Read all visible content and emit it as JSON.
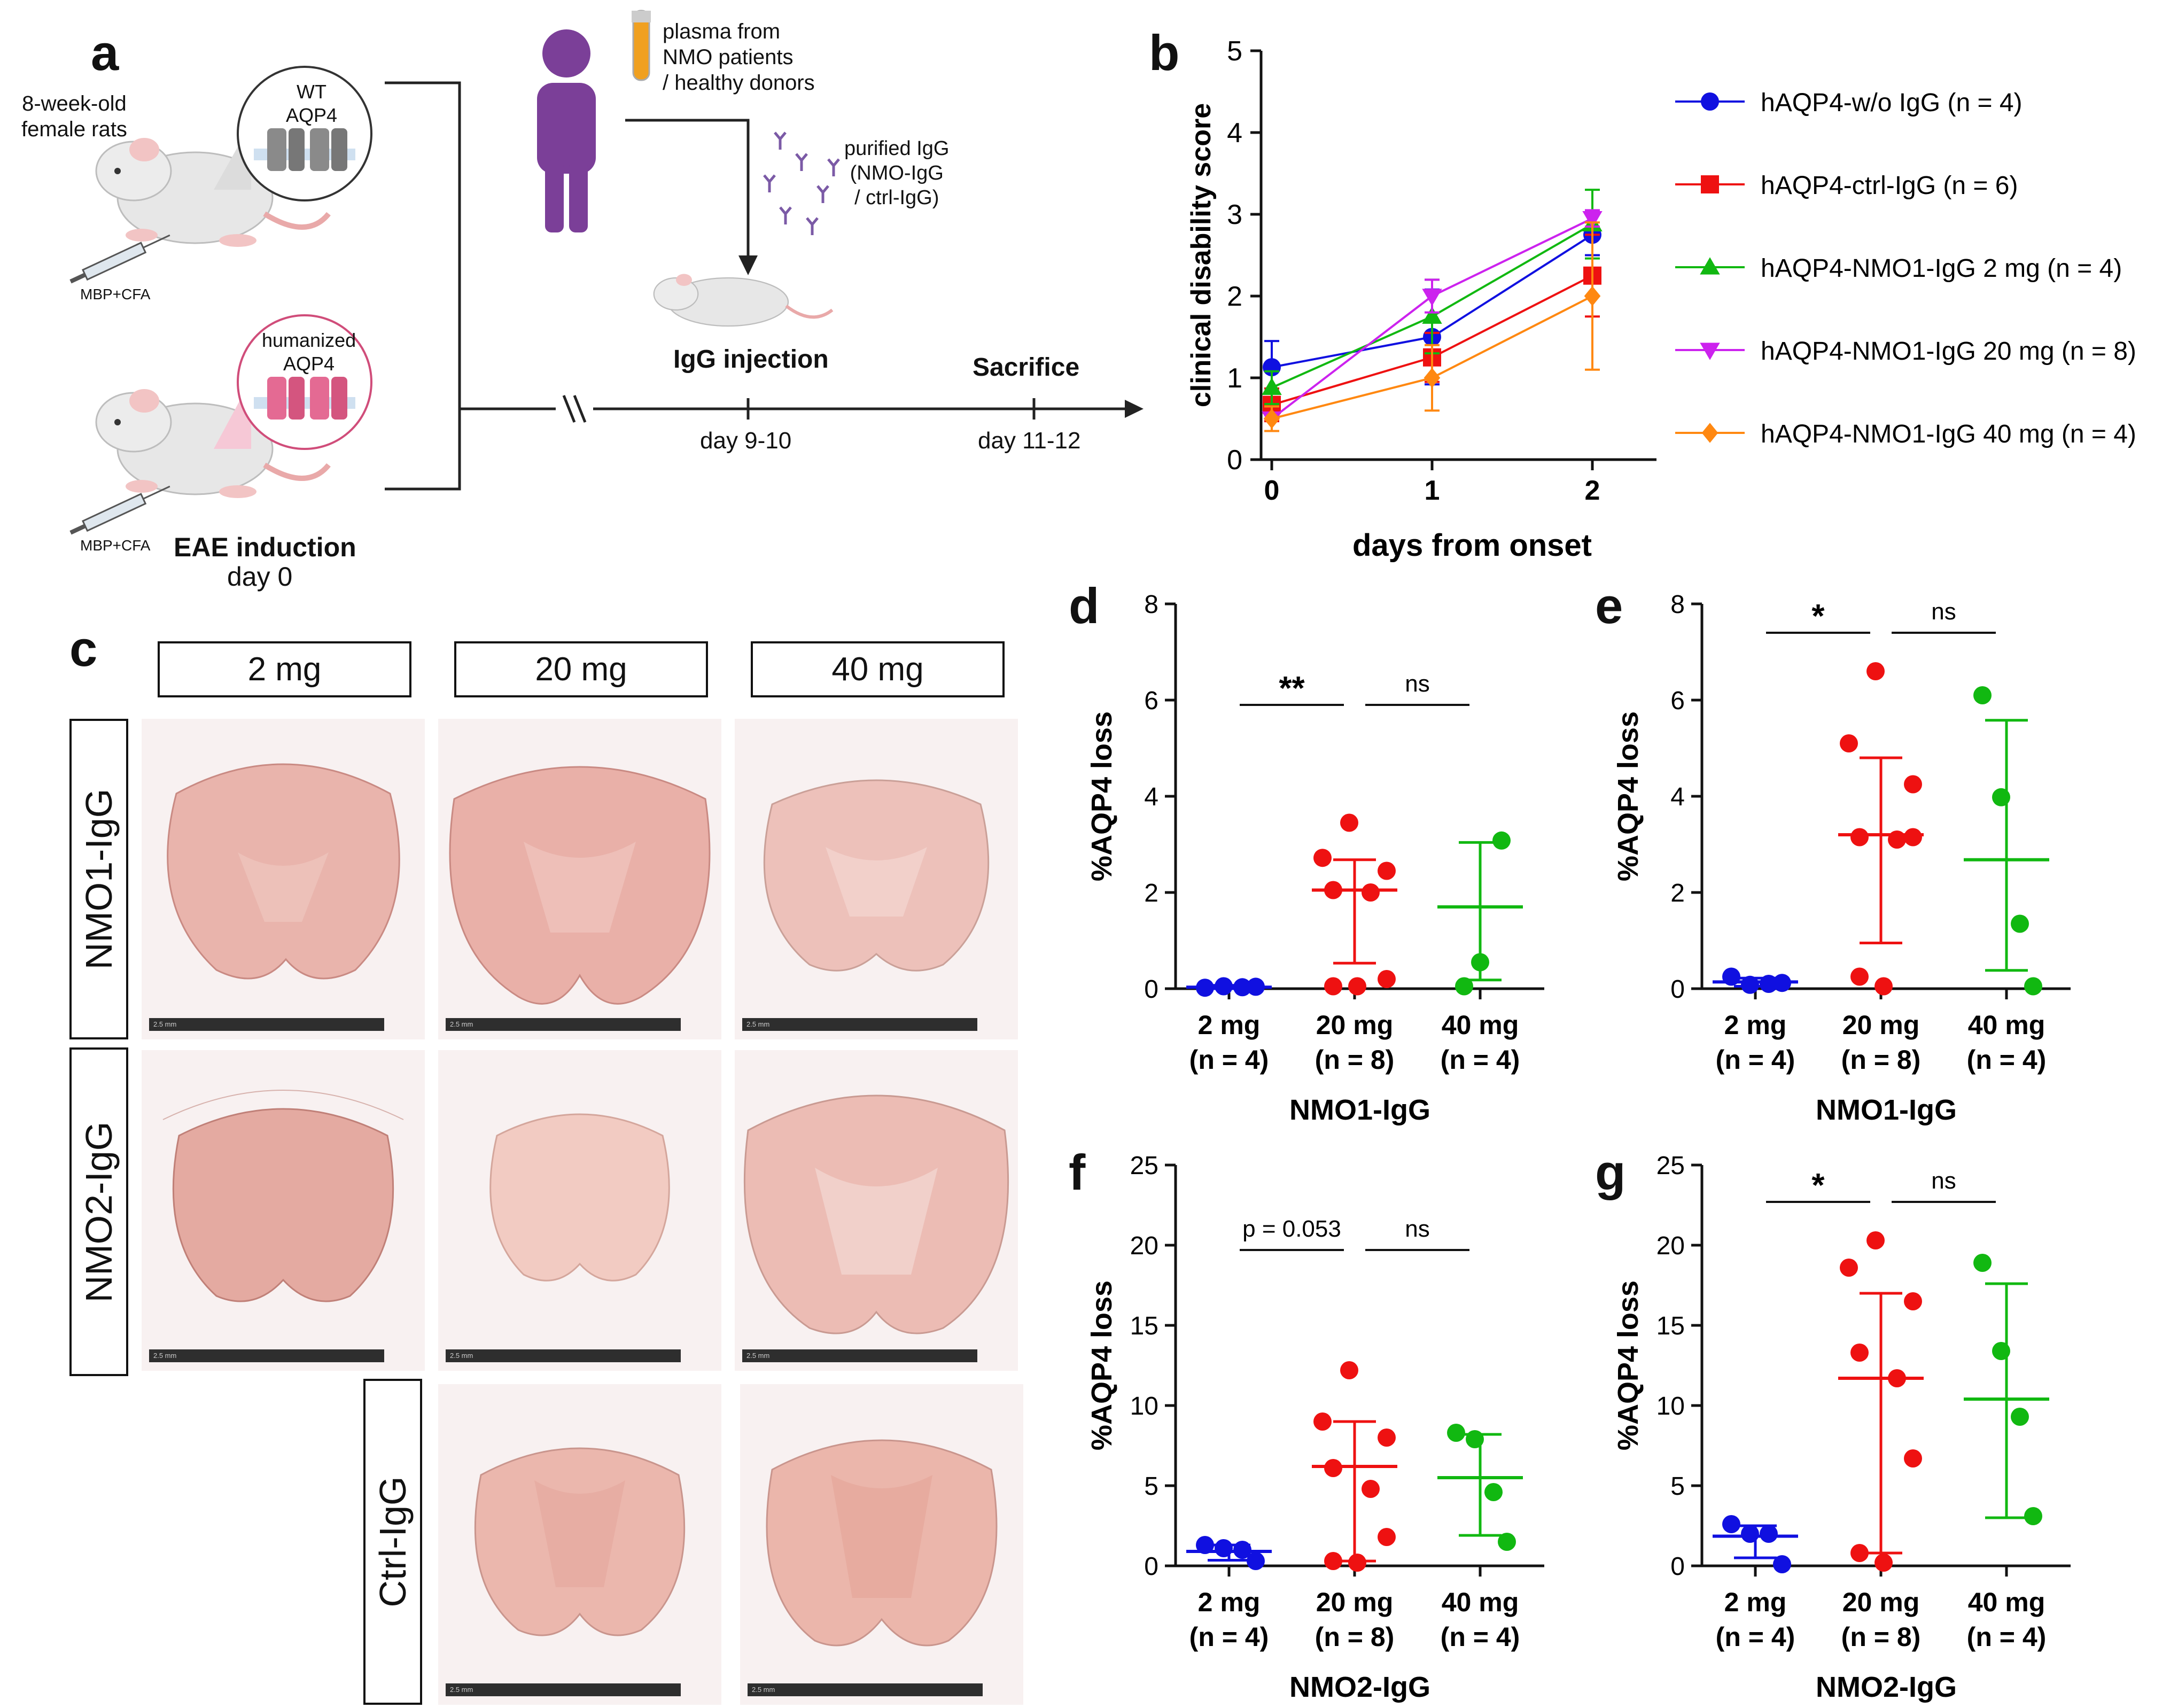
{
  "panel_labels": {
    "a": "a",
    "b": "b",
    "c": "c",
    "d": "d",
    "e": "e",
    "f": "f",
    "g": "g"
  },
  "schematic": {
    "rats_label": "8-week-old\nfemale rats",
    "wt_label": "WT\nAQP4",
    "hum_label": "humanized\nAQP4",
    "mbp1": "MBP+CFA",
    "mbp2": "MBP+CFA",
    "plasma": "plasma from\nNMO patients\n/ healthy donors",
    "purified": "purified IgG\n(NMO-IgG\n/ ctrl-IgG)",
    "igg_injection": "IgG injection",
    "sacrifice": "Sacrifice",
    "day_9_10": "day 9-10",
    "day_11_12": "day 11-12",
    "eae": "EAE induction",
    "day0": "day 0",
    "colors": {
      "person": "#7b3f98",
      "wt_membrane": "#888888",
      "hum_membrane": "#e06d8e",
      "tube": "#f0a020"
    }
  },
  "panel_c": {
    "columns": [
      "2 mg",
      "20 mg",
      "40 mg"
    ],
    "rows": [
      "NMO1-IgG",
      "NMO2-IgG",
      "Ctrl-IgG"
    ],
    "scale": "2.5 mm"
  },
  "chart_data": [
    {
      "id": "b",
      "type": "line",
      "title": "",
      "xlabel": "days from onset",
      "ylabel": "clinical disability score",
      "x": [
        0,
        1,
        2
      ],
      "xticks": [
        "0",
        "1",
        "2"
      ],
      "ylim": [
        0,
        5
      ],
      "yticks": [
        "0",
        "1",
        "2",
        "3",
        "4",
        "5"
      ],
      "legend_position": "right",
      "series": [
        {
          "name": "hAQP4-w/o IgG (n = 4)",
          "color": "#1010e0",
          "marker": "circle",
          "values": [
            1.13,
            1.5,
            2.75
          ],
          "err": [
            0.32,
            0.58,
            0.25
          ]
        },
        {
          "name": "hAQP4-ctrl-IgG (n = 6)",
          "color": "#ee1111",
          "marker": "square",
          "values": [
            0.67,
            1.25,
            2.25
          ],
          "err": [
            0.2,
            0.3,
            0.5
          ]
        },
        {
          "name": "hAQP4-NMO1-IgG 2 mg (n = 4)",
          "color": "#11b811",
          "marker": "triangle-up",
          "values": [
            0.88,
            1.75,
            2.88
          ],
          "err": [
            0.2,
            0.45,
            0.42
          ]
        },
        {
          "name": "hAQP4-NMO1-IgG 20 mg (n = 8)",
          "color": "#cc22ee",
          "marker": "triangle-down",
          "values": [
            0.5,
            2.0,
            2.95
          ],
          "err": [
            0.15,
            0.2,
            0.1
          ]
        },
        {
          "name": "hAQP4-NMO1-IgG 40 mg (n = 4)",
          "color": "#ff8811",
          "marker": "diamond",
          "values": [
            0.5,
            1.0,
            2.0
          ],
          "err": [
            0.15,
            0.4,
            0.9
          ]
        }
      ]
    },
    {
      "id": "d",
      "type": "scatter",
      "xlabel": "NMO1-IgG",
      "ylabel": "%AQP4 loss",
      "ylim": [
        0,
        8
      ],
      "yticks": [
        "0",
        "2",
        "4",
        "6",
        "8"
      ],
      "categories": [
        "2 mg",
        "20 mg",
        "40 mg"
      ],
      "n_labels": [
        "(n = 4)",
        "(n = 8)",
        "(n = 4)"
      ],
      "colors": [
        "#1010e0",
        "#ee1111",
        "#11b811"
      ],
      "groups": [
        {
          "points": [
            0.02,
            0.05,
            0.03,
            0.04
          ],
          "mean": 0.03,
          "sd_low": 0.0,
          "sd_high": 0.07
        },
        {
          "points": [
            3.45,
            2.72,
            2.45,
            2.05,
            2.0,
            0.2,
            0.05,
            0.05
          ],
          "mean": 2.05,
          "sd_low": 0.53,
          "sd_high": 2.68
        },
        {
          "points": [
            3.08,
            0.55,
            0.05
          ],
          "mean": 1.7,
          "sd_low": 0.18,
          "sd_high": 3.04
        }
      ],
      "comparisons": [
        {
          "label": "**",
          "from": 0,
          "to": 1,
          "y": 5.9
        },
        {
          "label": "ns",
          "from": 1,
          "to": 2,
          "y": 5.9
        }
      ]
    },
    {
      "id": "e",
      "type": "scatter",
      "xlabel": "NMO1-IgG",
      "ylabel": "%AQP4 loss",
      "ylim": [
        0,
        8
      ],
      "yticks": [
        "0",
        "2",
        "4",
        "6",
        "8"
      ],
      "categories": [
        "2 mg",
        "20 mg",
        "40 mg"
      ],
      "n_labels": [
        "(n = 4)",
        "(n = 8)",
        "(n = 4)"
      ],
      "colors": [
        "#1010e0",
        "#ee1111",
        "#11b811"
      ],
      "groups": [
        {
          "points": [
            0.25,
            0.08,
            0.1,
            0.12
          ],
          "mean": 0.14,
          "sd_low": 0.05,
          "sd_high": 0.22
        },
        {
          "points": [
            6.6,
            5.1,
            4.25,
            3.15,
            3.1,
            3.15,
            0.25,
            0.05
          ],
          "mean": 3.2,
          "sd_low": 0.95,
          "sd_high": 4.8
        },
        {
          "points": [
            6.1,
            3.98,
            1.35,
            0.05
          ],
          "mean": 2.68,
          "sd_low": 0.38,
          "sd_high": 5.58
        }
      ],
      "comparisons": [
        {
          "label": "*",
          "from": 0,
          "to": 1,
          "y": 7.4
        },
        {
          "label": "ns",
          "from": 1,
          "to": 2,
          "y": 7.4
        }
      ]
    },
    {
      "id": "f",
      "type": "scatter",
      "xlabel": "NMO2-IgG",
      "ylabel": "%AQP4 loss",
      "ylim": [
        0,
        25
      ],
      "yticks": [
        "0",
        "5",
        "10",
        "15",
        "20",
        "25"
      ],
      "categories": [
        "2 mg",
        "20 mg",
        "40 mg"
      ],
      "n_labels": [
        "(n = 4)",
        "(n = 8)",
        "(n = 4)"
      ],
      "colors": [
        "#1010e0",
        "#ee1111",
        "#11b811"
      ],
      "groups": [
        {
          "points": [
            1.3,
            1.1,
            1.0,
            0.3
          ],
          "mean": 0.9,
          "sd_low": 0.35,
          "sd_high": 1.3
        },
        {
          "points": [
            12.2,
            9.0,
            8.0,
            6.1,
            4.8,
            1.8,
            0.3,
            0.2
          ],
          "mean": 6.2,
          "sd_low": 0.3,
          "sd_high": 9.0
        },
        {
          "points": [
            8.3,
            7.9,
            4.6,
            1.5
          ],
          "mean": 5.5,
          "sd_low": 1.9,
          "sd_high": 8.2
        }
      ],
      "comparisons": [
        {
          "label": "p  = 0.053",
          "from": 0,
          "to": 1,
          "y": 19.7
        },
        {
          "label": "ns",
          "from": 1,
          "to": 2,
          "y": 19.7
        }
      ]
    },
    {
      "id": "g",
      "type": "scatter",
      "xlabel": "NMO2-IgG",
      "ylabel": "%AQP4 loss",
      "ylim": [
        0,
        25
      ],
      "yticks": [
        "0",
        "5",
        "10",
        "15",
        "20",
        "25"
      ],
      "categories": [
        "2 mg",
        "20 mg",
        "40 mg"
      ],
      "n_labels": [
        "(n = 4)",
        "(n = 8)",
        "(n = 4)"
      ],
      "colors": [
        "#1010e0",
        "#ee1111",
        "#11b811"
      ],
      "groups": [
        {
          "points": [
            2.6,
            2.0,
            2.0,
            0.1
          ],
          "mean": 1.85,
          "sd_low": 0.5,
          "sd_high": 2.5
        },
        {
          "points": [
            20.3,
            18.6,
            16.5,
            13.3,
            11.7,
            6.7,
            0.8,
            0.2
          ],
          "mean": 11.7,
          "sd_low": 0.8,
          "sd_high": 17.0
        },
        {
          "points": [
            18.9,
            13.4,
            9.3,
            3.1
          ],
          "mean": 10.4,
          "sd_low": 3.0,
          "sd_high": 17.6
        }
      ],
      "comparisons": [
        {
          "label": "*",
          "from": 0,
          "to": 1,
          "y": 22.7
        },
        {
          "label": "ns",
          "from": 1,
          "to": 2,
          "y": 22.7
        }
      ]
    }
  ]
}
